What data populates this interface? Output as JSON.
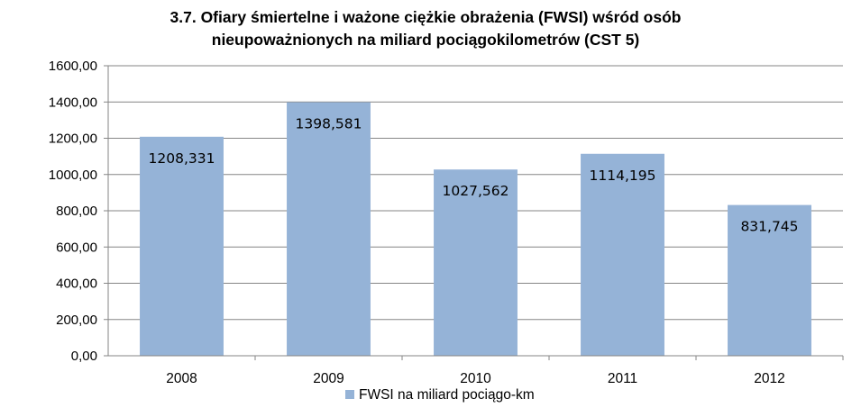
{
  "chart_data": {
    "type": "bar",
    "title": "3.7. Ofiary śmiertelne i ważone ciężkie obrażenia (FWSI) wśród osób nieupoważnionych na miliard pociągokilometrów (CST 5)",
    "title_lines": [
      "3.7. Ofiary śmiertelne i ważone ciężkie obrażenia (FWSI) wśród osób",
      "nieupoważnionych na miliard pociągokilometrów (CST 5)"
    ],
    "categories": [
      "2008",
      "2009",
      "2010",
      "2011",
      "2012"
    ],
    "series": [
      {
        "name": "FWSI na miliard pociągo-km",
        "values": [
          1208.331,
          1398.581,
          1027.562,
          1114.195,
          831.745
        ],
        "labels": [
          "1208,331",
          "1398,581",
          "1027,562",
          "1114,195",
          "831,745"
        ]
      }
    ],
    "ylim": [
      0,
      1600
    ],
    "yticks": [
      0,
      200,
      400,
      600,
      800,
      1000,
      1200,
      1400,
      1600
    ],
    "ytick_labels": [
      "0,00",
      "200,00",
      "400,00",
      "600,00",
      "800,00",
      "1000,00",
      "1200,00",
      "1400,00",
      "1600,00"
    ],
    "xlabel": "",
    "ylabel": "",
    "grid": true,
    "legend_position": "bottom",
    "colors": {
      "bar": "#95B3D7",
      "grid": "#868686",
      "axis": "#868686"
    }
  }
}
